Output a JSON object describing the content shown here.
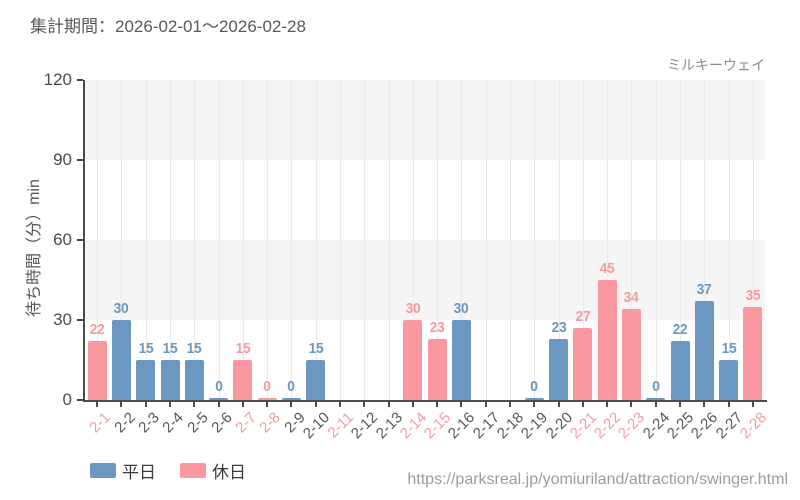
{
  "header": {
    "period": "集計期間：2026-02-01～2026-02-28"
  },
  "footer": {
    "url": "https://parksreal.jp/yomiuriland/attraction/swinger.html"
  },
  "colors": {
    "weekday": "#6B97C0",
    "holiday": "#F9999F",
    "band": "#F5F5F5",
    "grid": "#E9E9E9",
    "axis": "#4B4B4B",
    "weekday_label": "#555555",
    "ytick_label": "#4A4A4A"
  },
  "chart_data": {
    "type": "bar",
    "title": "ミルキーウェイ",
    "xlabel": "",
    "ylabel": "待ち時間（分）min",
    "ylim": [
      0,
      120
    ],
    "yticks": [
      0,
      30,
      60,
      90,
      120
    ],
    "legend_position": "bottom",
    "x_label_rotation": -45,
    "categories": [
      "2-1",
      "2-2",
      "2-3",
      "2-4",
      "2-5",
      "2-6",
      "2-7",
      "2-8",
      "2-9",
      "2-10",
      "2-11",
      "2-12",
      "2-13",
      "2-14",
      "2-15",
      "2-16",
      "2-17",
      "2-18",
      "2-19",
      "2-20",
      "2-21",
      "2-22",
      "2-23",
      "2-24",
      "2-25",
      "2-26",
      "2-27",
      "2-28"
    ],
    "holiday_dates": [
      "2-1",
      "2-7",
      "2-8",
      "2-11",
      "2-14",
      "2-15",
      "2-21",
      "2-22",
      "2-23",
      "2-28"
    ],
    "series": [
      {
        "name": "平日",
        "values": [
          null,
          30,
          15,
          15,
          15,
          0,
          null,
          null,
          0,
          15,
          null,
          null,
          null,
          null,
          null,
          30,
          null,
          null,
          0,
          23,
          null,
          null,
          null,
          0,
          22,
          37,
          15,
          null
        ]
      },
      {
        "name": "休日",
        "values": [
          22,
          null,
          null,
          null,
          null,
          null,
          15,
          0,
          null,
          null,
          null,
          null,
          null,
          30,
          23,
          null,
          null,
          null,
          null,
          null,
          27,
          45,
          34,
          null,
          null,
          null,
          null,
          35
        ]
      }
    ]
  }
}
